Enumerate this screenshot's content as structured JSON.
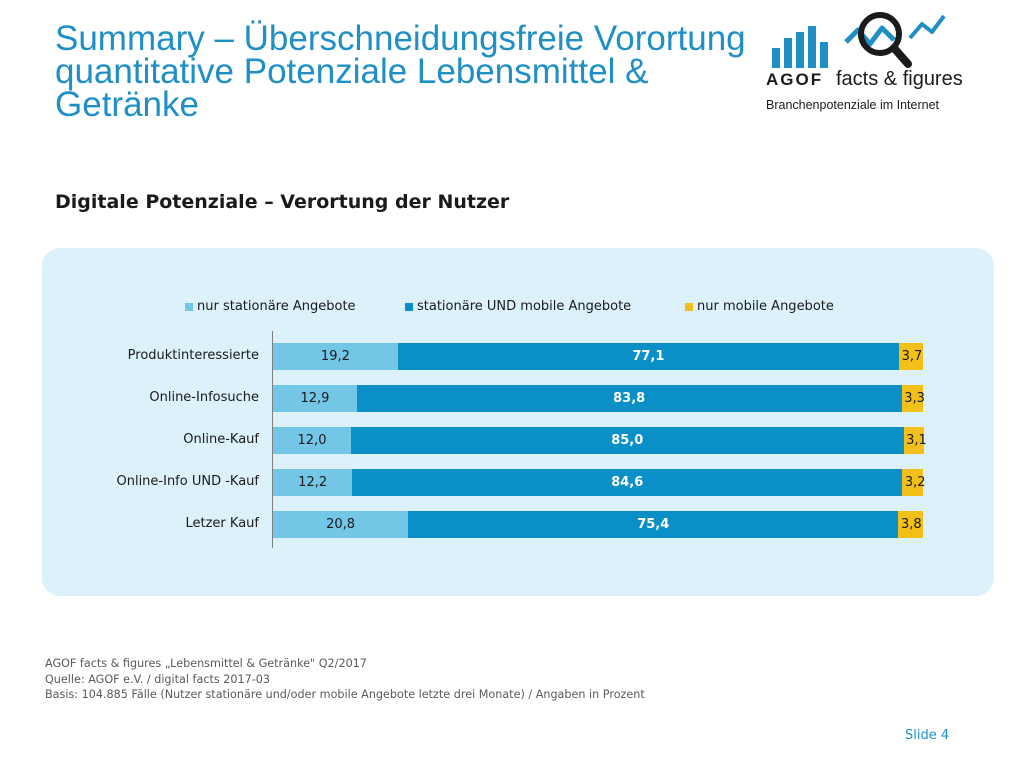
{
  "header": {
    "title_line1": "Summary – Überschneidungsfreie Vorortung",
    "title_line2": "quantitative Potenziale Lebensmittel &",
    "title_line3": "Getränke"
  },
  "logo": {
    "agof": "AGOF",
    "facts": "facts & figures",
    "sub": "Branchenpotenziale im Internet"
  },
  "subtitle": "Digitale Potenziale – Verortung der Nutzer",
  "chart_data": {
    "type": "bar",
    "orientation": "horizontal",
    "stacked": true,
    "title": "",
    "xlabel": "",
    "ylabel": "",
    "xlim": [
      0,
      100
    ],
    "legend_position": "top",
    "categories": [
      "Produktinteressierte",
      "Online-Infosuche",
      "Online-Kauf",
      "Online-Info UND -Kauf",
      "Letzer Kauf"
    ],
    "series": [
      {
        "name": "nur stationäre Angebote",
        "color": "#74c6e6",
        "label_color": "#1a1a1a",
        "bold": false,
        "values": [
          19.2,
          12.9,
          12.0,
          12.2,
          20.8
        ],
        "labels": [
          "19,2",
          "12,9",
          "12,0",
          "12,2",
          "20,8"
        ]
      },
      {
        "name": "stationäre UND mobile Angebote",
        "color": "#0a90c6",
        "label_color": "#ffffff",
        "bold": true,
        "values": [
          77.1,
          83.8,
          85.0,
          84.6,
          75.4
        ],
        "labels": [
          "77,1",
          "83,8",
          "85,0",
          "84,6",
          "75,4"
        ]
      },
      {
        "name": "nur mobile Angebote",
        "color": "#f2c018",
        "label_color": "#1a1a1a",
        "bold": false,
        "values": [
          3.7,
          3.3,
          3.1,
          3.2,
          3.8
        ],
        "labels": [
          "3,7",
          "3,3",
          "3,1",
          "3,2",
          "3,8"
        ]
      }
    ]
  },
  "footer": {
    "line1": "AGOF facts & figures „Lebensmittel & Getränke\" Q2/2017",
    "line2": "Quelle: AGOF e.V. / digital facts 2017-03",
    "line3": "Basis: 104.885 Fälle (Nutzer stationäre und/oder mobile Angebote letzte drei Monate) / Angaben in Prozent"
  },
  "slide_label": "Slide 4",
  "colors": {
    "accent": "#1f8fc6",
    "panel": "#ddf1fb"
  }
}
